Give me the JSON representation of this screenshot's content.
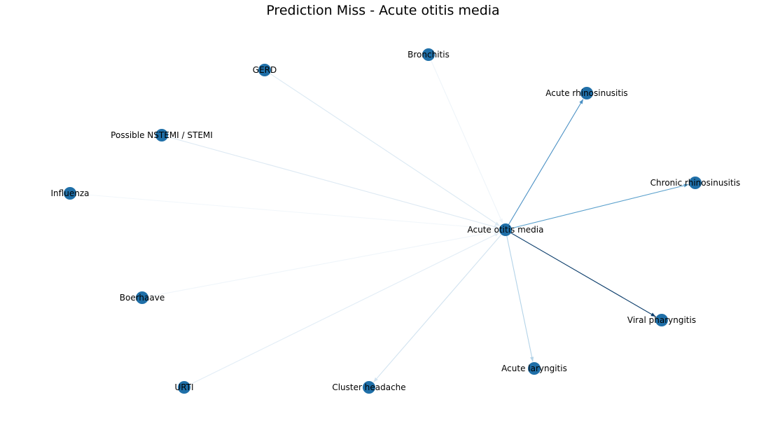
{
  "title": "Prediction Miss - Acute otitis media",
  "graph": {
    "node_color": "#1f6fa8",
    "center": "Acute otitis media",
    "nodes": [
      {
        "id": "acute-otitis-media",
        "label": "Acute otitis media"
      },
      {
        "id": "bronchitis",
        "label": "Bronchitis"
      },
      {
        "id": "gerd",
        "label": "GERD"
      },
      {
        "id": "acute-rhinosinusitis",
        "label": "Acute rhinosinusitis"
      },
      {
        "id": "possible-nstemi-stemi",
        "label": "Possible NSTEMI / STEMI"
      },
      {
        "id": "chronic-rhinosinusitis",
        "label": "Chronic rhinosinusitis"
      },
      {
        "id": "influenza",
        "label": "Influenza"
      },
      {
        "id": "boerhaave",
        "label": "Boerhaave"
      },
      {
        "id": "viral-pharyngitis",
        "label": "Viral pharyngitis"
      },
      {
        "id": "acute-laryngitis",
        "label": "Acute laryngitis"
      },
      {
        "id": "cluster-headache",
        "label": "Cluster headache"
      },
      {
        "id": "urti",
        "label": "URTI"
      }
    ],
    "edges": [
      {
        "source": "bronchitis",
        "target": "acute-otitis-media",
        "color": "#eef4f9"
      },
      {
        "source": "gerd",
        "target": "acute-otitis-media",
        "color": "#dbe9f3"
      },
      {
        "source": "possible-nstemi-stemi",
        "target": "acute-otitis-media",
        "color": "#dde9f3"
      },
      {
        "source": "influenza",
        "target": "acute-otitis-media",
        "color": "#f2f7fb"
      },
      {
        "source": "boerhaave",
        "target": "acute-otitis-media",
        "color": "#eff5fa"
      },
      {
        "source": "urti",
        "target": "acute-otitis-media",
        "color": "#e2edf6"
      },
      {
        "source": "acute-otitis-media",
        "target": "cluster-headache",
        "color": "#d2e3f0"
      },
      {
        "source": "acute-otitis-media",
        "target": "acute-laryngitis",
        "color": "#b3d3e8"
      },
      {
        "source": "acute-otitis-media",
        "target": "acute-rhinosinusitis",
        "color": "#4a90c4"
      },
      {
        "source": "acute-otitis-media",
        "target": "chronic-rhinosinusitis",
        "color": "#5aa0cc"
      },
      {
        "source": "acute-otitis-media",
        "target": "viral-pharyngitis",
        "color": "#0b3d6b"
      }
    ]
  }
}
